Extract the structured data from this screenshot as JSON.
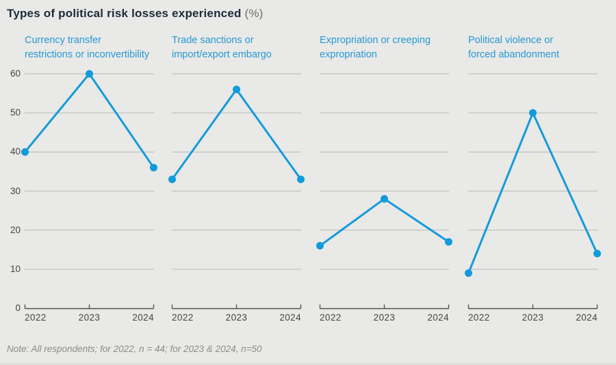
{
  "header": {
    "title": "Types of political risk losses experienced",
    "title_suffix": " (%)"
  },
  "note": "Note: All respondents; for 2022, n = 44; for 2023 & 2024, n=50",
  "colors": {
    "background": "#e9e9e7",
    "title_dark": "#1d2b3a",
    "heading_blue": "#2598d4",
    "line_blue": "#129bdb",
    "grid_gray": "#b8b8b6",
    "axis_gray": "#53524d",
    "tick_gray": "#45443f",
    "note_gray": "#8b8b88"
  },
  "chart_data": {
    "type": "line",
    "layout": "small_multiples",
    "title": "Types of political risk losses experienced (%)",
    "x": [
      "2022",
      "2023",
      "2024"
    ],
    "ylim": [
      0,
      60
    ],
    "yticks": [
      0,
      10,
      20,
      30,
      40,
      50,
      60
    ],
    "grid": "horizontal",
    "legend": "none",
    "marker": "circle",
    "series": [
      {
        "name": "Currency transfer restrictions or inconvertibility",
        "label_lines": [
          "Currency transfer",
          "restrictions or inconvertibility"
        ],
        "values": [
          40,
          60,
          36
        ]
      },
      {
        "name": "Trade sanctions or import/export embargo",
        "label_lines": [
          "Trade sanctions or",
          "import/export embargo"
        ],
        "values": [
          33,
          56,
          33
        ]
      },
      {
        "name": "Expropriation or creeping expropriation",
        "label_lines": [
          "Expropriation or creeping",
          "expropriation"
        ],
        "values": [
          16,
          28,
          17
        ]
      },
      {
        "name": "Political violence or forced abandonment",
        "label_lines": [
          "Political violence or",
          "forced abandonment"
        ],
        "values": [
          9,
          50,
          14
        ]
      }
    ],
    "note": "Note: All respondents; for 2022, n = 44; for 2023 & 2024, n=50"
  }
}
